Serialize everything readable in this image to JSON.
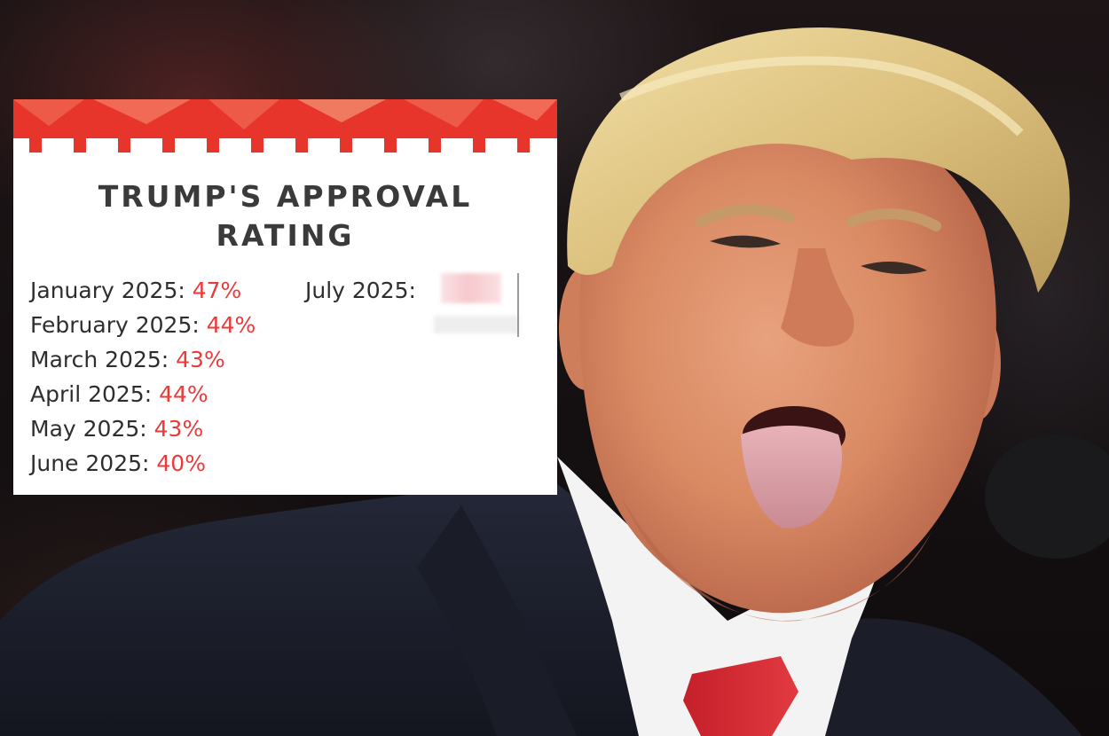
{
  "card": {
    "title_line1": "TRUMP'S APPROVAL",
    "title_line2": "RATING",
    "months": [
      {
        "label": "January 2025:",
        "value": "47%"
      },
      {
        "label": "February 2025:",
        "value": "44%"
      },
      {
        "label": "March 2025:",
        "value": "43%"
      },
      {
        "label": "April 2025:",
        "value": "44%"
      },
      {
        "label": "May 2025:",
        "value": "43%"
      },
      {
        "label": "June 2025:",
        "value": "40%"
      }
    ],
    "july_label": "July 2025:",
    "july_value_hidden": true,
    "accent_color": "#ea3a3a",
    "banner_color": "#e8352b"
  },
  "photo": {
    "subject": "man-sticking-out-tongue",
    "background": "dark-rally-crowd"
  }
}
